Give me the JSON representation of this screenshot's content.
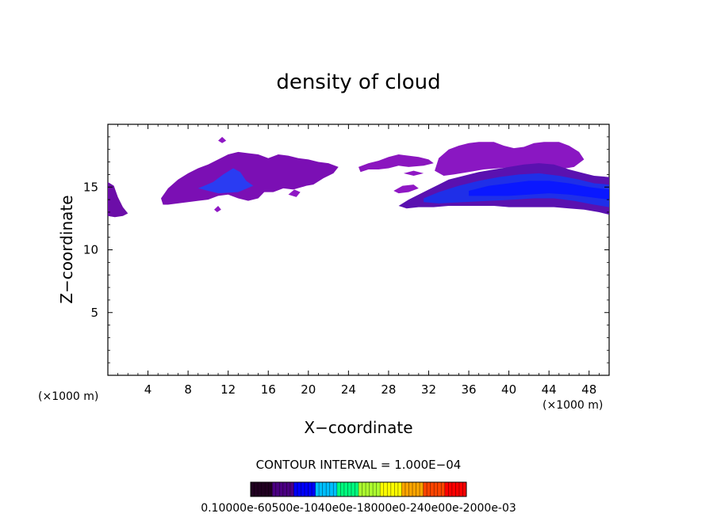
{
  "chart_data": {
    "type": "heatmap",
    "title": "density of cloud",
    "xlabel": "X−coordinate",
    "ylabel": "Z−coordinate",
    "x_unit_label": "(×1000 m)",
    "z_unit_label": "(×1000 m)",
    "xlim": [
      0,
      50
    ],
    "ylim": [
      0,
      20
    ],
    "x_ticks": [
      4,
      8,
      12,
      16,
      20,
      24,
      28,
      32,
      36,
      40,
      44,
      48
    ],
    "y_ticks": [
      5,
      10,
      15
    ],
    "contour_interval_text": "CONTOUR INTERVAL = 1.000E−04",
    "colorbar": {
      "labels_text": "0.10000e-60500e-1040e0e-18000e0-240e00e-2000e-03",
      "colors": [
        "#200020",
        "#4b0082",
        "#0000ff",
        "#00bfff",
        "#00ff7f",
        "#adff2f",
        "#ffff00",
        "#ffa500",
        "#ff4500",
        "#ff0000"
      ]
    },
    "cloud_regions": [
      {
        "name": "left edge",
        "polygon": [
          [
            0.0,
            15.4
          ],
          [
            0.6,
            15.1
          ],
          [
            1.0,
            14.2
          ],
          [
            1.5,
            13.4
          ],
          [
            2.0,
            12.9
          ],
          [
            1.5,
            12.7
          ],
          [
            0.7,
            12.6
          ],
          [
            0.0,
            12.7
          ]
        ]
      },
      {
        "name": "left cloud",
        "polygon": [
          [
            5.3,
            14.1
          ],
          [
            6.0,
            14.9
          ],
          [
            7.0,
            15.6
          ],
          [
            8.0,
            16.1
          ],
          [
            9.0,
            16.5
          ],
          [
            10.0,
            16.8
          ],
          [
            11.0,
            17.2
          ],
          [
            12.0,
            17.6
          ],
          [
            13.0,
            17.8
          ],
          [
            14.0,
            17.7
          ],
          [
            15.0,
            17.6
          ],
          [
            16.0,
            17.3
          ],
          [
            17.0,
            17.6
          ],
          [
            18.0,
            17.5
          ],
          [
            19.0,
            17.3
          ],
          [
            20.0,
            17.2
          ],
          [
            21.0,
            17.0
          ],
          [
            22.0,
            16.9
          ],
          [
            23.0,
            16.6
          ],
          [
            22.5,
            16.1
          ],
          [
            21.5,
            15.7
          ],
          [
            20.5,
            15.2
          ],
          [
            19.8,
            15.1
          ],
          [
            18.5,
            14.8
          ],
          [
            17.5,
            14.9
          ],
          [
            16.5,
            14.6
          ],
          [
            15.6,
            14.6
          ],
          [
            15.0,
            14.1
          ],
          [
            14.0,
            13.9
          ],
          [
            13.0,
            14.1
          ],
          [
            12.0,
            14.4
          ],
          [
            11.0,
            14.3
          ],
          [
            10.0,
            14.0
          ],
          [
            9.0,
            13.9
          ],
          [
            8.0,
            13.8
          ],
          [
            7.0,
            13.7
          ],
          [
            6.0,
            13.6
          ],
          [
            5.5,
            13.6
          ]
        ]
      },
      {
        "name": "left cloud core",
        "polygon": [
          [
            9.0,
            14.9
          ],
          [
            10.5,
            15.4
          ],
          [
            11.5,
            16.0
          ],
          [
            12.5,
            16.5
          ],
          [
            13.2,
            16.2
          ],
          [
            13.8,
            15.5
          ],
          [
            14.5,
            15.1
          ],
          [
            13.0,
            14.6
          ],
          [
            11.0,
            14.5
          ]
        ]
      },
      {
        "name": "small patch 1",
        "polygon": [
          [
            18.0,
            14.4
          ],
          [
            18.6,
            14.8
          ],
          [
            19.2,
            14.6
          ],
          [
            18.8,
            14.2
          ]
        ]
      },
      {
        "name": "small patch 2",
        "polygon": [
          [
            11.0,
            18.7
          ],
          [
            11.4,
            19.0
          ],
          [
            11.8,
            18.7
          ],
          [
            11.4,
            18.5
          ]
        ]
      },
      {
        "name": "small patch 3",
        "polygon": [
          [
            10.6,
            13.2
          ],
          [
            11.0,
            13.5
          ],
          [
            11.3,
            13.2
          ],
          [
            10.9,
            13.0
          ]
        ]
      },
      {
        "name": "middle streak",
        "polygon": [
          [
            25.0,
            16.6
          ],
          [
            26.0,
            16.9
          ],
          [
            27.0,
            17.1
          ],
          [
            28.0,
            17.4
          ],
          [
            29.0,
            17.6
          ],
          [
            30.0,
            17.5
          ],
          [
            31.0,
            17.4
          ],
          [
            32.0,
            17.2
          ],
          [
            32.5,
            16.9
          ],
          [
            31.5,
            16.7
          ],
          [
            30.0,
            16.6
          ],
          [
            29.0,
            16.7
          ],
          [
            28.0,
            16.5
          ],
          [
            27.0,
            16.4
          ],
          [
            26.0,
            16.4
          ],
          [
            25.2,
            16.2
          ]
        ]
      },
      {
        "name": "small patch 4",
        "polygon": [
          [
            29.5,
            16.1
          ],
          [
            30.5,
            16.3
          ],
          [
            31.5,
            16.1
          ],
          [
            30.5,
            15.9
          ]
        ]
      },
      {
        "name": "small patch 5",
        "polygon": [
          [
            28.5,
            14.7
          ],
          [
            29.4,
            15.1
          ],
          [
            30.5,
            15.2
          ],
          [
            31.0,
            14.9
          ],
          [
            30.0,
            14.6
          ],
          [
            29.0,
            14.5
          ]
        ]
      },
      {
        "name": "upper right cloud",
        "polygon": [
          [
            32.6,
            16.3
          ],
          [
            33.0,
            17.3
          ],
          [
            34.0,
            18.0
          ],
          [
            35.0,
            18.3
          ],
          [
            36.0,
            18.5
          ],
          [
            37.0,
            18.6
          ],
          [
            38.5,
            18.6
          ],
          [
            39.5,
            18.3
          ],
          [
            40.5,
            18.1
          ],
          [
            41.5,
            18.2
          ],
          [
            42.5,
            18.5
          ],
          [
            43.5,
            18.6
          ],
          [
            45.0,
            18.6
          ],
          [
            46.0,
            18.3
          ],
          [
            47.0,
            17.8
          ],
          [
            47.5,
            17.2
          ],
          [
            46.5,
            16.6
          ],
          [
            45.0,
            16.4
          ],
          [
            43.5,
            16.4
          ],
          [
            42.0,
            16.5
          ],
          [
            40.5,
            16.6
          ],
          [
            39.0,
            16.5
          ],
          [
            37.5,
            16.4
          ],
          [
            36.0,
            16.2
          ],
          [
            34.5,
            16.0
          ],
          [
            33.5,
            15.9
          ]
        ]
      },
      {
        "name": "right anvil",
        "polygon": [
          [
            29.0,
            13.5
          ],
          [
            30.0,
            14.0
          ],
          [
            31.0,
            14.4
          ],
          [
            32.0,
            14.8
          ],
          [
            33.0,
            15.2
          ],
          [
            34.0,
            15.6
          ],
          [
            35.5,
            15.9
          ],
          [
            37.0,
            16.2
          ],
          [
            38.5,
            16.4
          ],
          [
            40.0,
            16.6
          ],
          [
            41.5,
            16.8
          ],
          [
            43.0,
            16.9
          ],
          [
            44.5,
            16.8
          ],
          [
            46.0,
            16.4
          ],
          [
            47.5,
            16.1
          ],
          [
            48.5,
            15.9
          ],
          [
            50.0,
            15.8
          ],
          [
            50.0,
            12.8
          ],
          [
            49.0,
            13.0
          ],
          [
            47.5,
            13.2
          ],
          [
            46.0,
            13.3
          ],
          [
            44.5,
            13.4
          ],
          [
            43.0,
            13.4
          ],
          [
            41.5,
            13.4
          ],
          [
            40.0,
            13.4
          ],
          [
            38.5,
            13.5
          ],
          [
            37.0,
            13.5
          ],
          [
            35.5,
            13.5
          ],
          [
            34.0,
            13.5
          ],
          [
            32.5,
            13.4
          ],
          [
            31.0,
            13.4
          ],
          [
            29.8,
            13.3
          ]
        ]
      },
      {
        "name": "right anvil core",
        "polygon": [
          [
            31.5,
            14.1
          ],
          [
            33.0,
            14.6
          ],
          [
            35.0,
            15.1
          ],
          [
            37.0,
            15.5
          ],
          [
            39.0,
            15.8
          ],
          [
            41.0,
            16.0
          ],
          [
            43.0,
            16.1
          ],
          [
            45.0,
            15.9
          ],
          [
            47.0,
            15.6
          ],
          [
            48.5,
            15.3
          ],
          [
            50.0,
            15.2
          ],
          [
            50.0,
            13.4
          ],
          [
            48.5,
            13.6
          ],
          [
            46.5,
            13.9
          ],
          [
            44.5,
            14.1
          ],
          [
            42.5,
            14.1
          ],
          [
            40.5,
            14.0
          ],
          [
            38.0,
            13.9
          ],
          [
            35.5,
            13.8
          ],
          [
            33.0,
            13.7
          ],
          [
            31.5,
            13.8
          ]
        ]
      },
      {
        "name": "right anvil center",
        "polygon": [
          [
            36.0,
            14.7
          ],
          [
            38.0,
            15.1
          ],
          [
            40.0,
            15.3
          ],
          [
            42.0,
            15.5
          ],
          [
            44.0,
            15.5
          ],
          [
            46.0,
            15.3
          ],
          [
            48.0,
            15.0
          ],
          [
            50.0,
            14.8
          ],
          [
            50.0,
            14.0
          ],
          [
            48.0,
            14.2
          ],
          [
            46.0,
            14.4
          ],
          [
            44.0,
            14.5
          ],
          [
            42.0,
            14.4
          ],
          [
            40.0,
            14.3
          ],
          [
            38.0,
            14.3
          ],
          [
            36.0,
            14.3
          ]
        ]
      }
    ]
  }
}
